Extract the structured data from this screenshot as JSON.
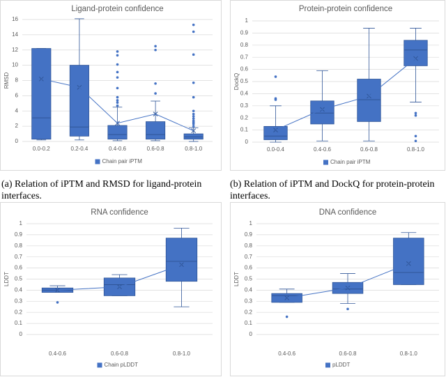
{
  "chart_data": [
    {
      "type": "box",
      "title": "Ligand-protein confidence",
      "ylabel": "RMSD",
      "caption": "(a) Relation of iPTM and RMSD for ligand-protein interfaces.",
      "categories": [
        "0.0-0.2",
        "0.2-0.4",
        "0.4-0.6",
        "0.6-0.8",
        "0.8-1.0"
      ],
      "ylim": [
        0,
        16
      ],
      "yticks": [
        0,
        2,
        4,
        6,
        8,
        10,
        12,
        14,
        16
      ],
      "grid": true,
      "legend": "bottom",
      "series": [
        {
          "name": "Chain pair iPTM",
          "color": "#4472c4",
          "min": [
            0.2,
            0.2,
            0.1,
            0.1,
            0.0
          ],
          "q1": [
            0.3,
            0.7,
            0.3,
            0.3,
            0.3
          ],
          "median": [
            3.1,
            1.9,
            0.9,
            0.9,
            0.6
          ],
          "q3": [
            12.2,
            10.0,
            2.1,
            2.6,
            1.0
          ],
          "max": [
            12.2,
            16.1,
            4.5,
            5.3,
            1.8
          ],
          "mean": [
            8.2,
            7.1,
            2.4,
            3.6,
            1.4
          ],
          "outliers": [
            [],
            [],
            [
              11.8,
              11.3,
              10.1,
              9.1,
              8.4,
              7.0,
              5.8,
              5.4,
              5.1,
              4.7
            ],
            [
              12.5,
              12.0,
              7.6,
              6.3
            ],
            [
              15.3,
              14.4,
              11.4,
              7.7,
              5.8,
              4.0,
              3.6,
              3.3,
              3.0,
              2.7,
              2.5,
              2.3,
              2.0
            ]
          ]
        }
      ]
    },
    {
      "type": "box",
      "title": "Protein-protein confidence",
      "ylabel": "DockQ",
      "caption": "(b) Relation of iPTM and DockQ for protein-protein interfaces.",
      "categories": [
        "0.0-0.4",
        "0.4-0.6",
        "0.6-0.8",
        "0.8-1.0"
      ],
      "ylim": [
        0,
        1
      ],
      "yticks": [
        0,
        0.1,
        0.2,
        0.3,
        0.4,
        0.5,
        0.6,
        0.7,
        0.8,
        0.9,
        1
      ],
      "grid": true,
      "legend": "bottom",
      "series": [
        {
          "name": "Chain pair iPTM",
          "color": "#4472c4",
          "min": [
            0.0,
            0.01,
            0.01,
            0.33
          ],
          "q1": [
            0.02,
            0.15,
            0.17,
            0.63
          ],
          "median": [
            0.05,
            0.24,
            0.35,
            0.76
          ],
          "q3": [
            0.13,
            0.34,
            0.52,
            0.84
          ],
          "max": [
            0.3,
            0.59,
            0.94,
            0.94
          ],
          "mean": [
            0.1,
            0.27,
            0.38,
            0.69
          ],
          "outliers": [
            [
              0.54,
              0.36,
              0.35
            ],
            [],
            [],
            [
              0.24,
              0.22,
              0.05,
              0.01
            ]
          ]
        }
      ]
    },
    {
      "type": "box",
      "title": "RNA confidence",
      "ylabel": "LDDT",
      "categories": [
        "0.4-0.6",
        "0.6-0.8",
        "0.8-1.0"
      ],
      "ylim": [
        0,
        1
      ],
      "yticks": [
        0,
        0.1,
        0.2,
        0.3,
        0.4,
        0.5,
        0.6,
        0.7,
        0.8,
        0.9,
        1
      ],
      "grid": true,
      "legend": "bottom",
      "series": [
        {
          "name": "Chain pLDDT",
          "color": "#4472c4",
          "min": [
            0.38,
            0.35,
            0.25
          ],
          "q1": [
            0.38,
            0.35,
            0.48
          ],
          "median": [
            0.4,
            0.45,
            0.66
          ],
          "q3": [
            0.42,
            0.51,
            0.87
          ],
          "max": [
            0.44,
            0.54,
            0.96
          ],
          "mean": [
            0.4,
            0.43,
            0.63
          ],
          "outliers": [
            [
              0.29
            ],
            [],
            []
          ]
        }
      ]
    },
    {
      "type": "box",
      "title": "DNA confidence",
      "ylabel": "LDDT",
      "categories": [
        "0.4-0.6",
        "0.6-0.8",
        "0.8-1.0"
      ],
      "ylim": [
        0,
        1
      ],
      "yticks": [
        0,
        0.1,
        0.2,
        0.3,
        0.4,
        0.5,
        0.6,
        0.7,
        0.8,
        0.9,
        1
      ],
      "grid": true,
      "legend": "bottom",
      "series": [
        {
          "name": "pLDDT",
          "color": "#4472c4",
          "min": [
            0.29,
            0.28,
            0.45
          ],
          "q1": [
            0.29,
            0.37,
            0.45
          ],
          "median": [
            0.35,
            0.41,
            0.56
          ],
          "q3": [
            0.37,
            0.47,
            0.87
          ],
          "max": [
            0.41,
            0.55,
            0.92
          ],
          "mean": [
            0.33,
            0.42,
            0.64
          ],
          "outliers": [
            [
              0.16
            ],
            [
              0.23
            ],
            []
          ]
        }
      ]
    }
  ]
}
